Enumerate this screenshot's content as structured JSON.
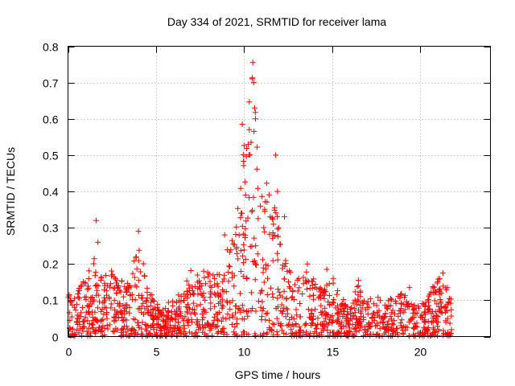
{
  "chart_data": {
    "type": "scatter",
    "title": "Day 334 of 2021, SRMTID for receiver lama",
    "xlabel": "GPS time / hours",
    "ylabel": "SRMTID / TECUs",
    "xlim": [
      0,
      24
    ],
    "ylim": [
      0,
      0.8
    ],
    "x_ticks": [
      0,
      5,
      10,
      15,
      20
    ],
    "x_tick_labels": [
      "0",
      "5",
      "10",
      "15",
      "20"
    ],
    "y_ticks": [
      0,
      0.1,
      0.2,
      0.3,
      0.4,
      0.5,
      0.6,
      0.7,
      0.8
    ],
    "y_tick_labels": [
      "0",
      "0.1",
      "0.2",
      "0.3",
      "0.4",
      "0.5",
      "0.6",
      "0.7",
      "0.8"
    ],
    "grid": true,
    "marker": "plus",
    "marker_color": "#ff0000",
    "series": [
      {
        "name": "SRMTID",
        "color": "#ff0000",
        "envelope_hours": [
          0,
          0.5,
          1,
          1.5,
          2,
          2.5,
          3,
          3.5,
          4,
          4.5,
          5,
          5.5,
          6,
          6.5,
          7,
          7.5,
          8,
          8.5,
          9,
          9.5,
          10,
          10.5,
          11,
          11.5,
          12,
          12.5,
          13,
          13.5,
          14,
          14.5,
          15,
          15.5,
          16,
          16.5,
          17,
          17.5,
          18,
          18.5,
          19,
          19.5,
          20,
          20.5,
          21,
          21.5,
          21.8
        ],
        "envelope_values": [
          0.12,
          0.13,
          0.17,
          0.22,
          0.18,
          0.19,
          0.16,
          0.15,
          0.28,
          0.15,
          0.1,
          0.09,
          0.11,
          0.13,
          0.19,
          0.18,
          0.2,
          0.19,
          0.25,
          0.3,
          0.55,
          0.75,
          0.4,
          0.5,
          0.3,
          0.2,
          0.17,
          0.19,
          0.16,
          0.14,
          0.18,
          0.11,
          0.1,
          0.15,
          0.1,
          0.12,
          0.09,
          0.12,
          0.13,
          0.1,
          0.09,
          0.12,
          0.17,
          0.15,
          0.1
        ],
        "outliers": [
          {
            "x": 1.6,
            "y": 0.32
          },
          {
            "x": 1.7,
            "y": 0.26
          },
          {
            "x": 4.0,
            "y": 0.29
          },
          {
            "x": 8.9,
            "y": 0.28
          },
          {
            "x": 9.9,
            "y": 0.585
          },
          {
            "x": 10.3,
            "y": 0.57
          },
          {
            "x": 10.5,
            "y": 0.755
          },
          {
            "x": 10.55,
            "y": 0.7
          },
          {
            "x": 10.6,
            "y": 0.63
          },
          {
            "x": 10.65,
            "y": 0.6
          },
          {
            "x": 10.4,
            "y": 0.535
          },
          {
            "x": 11.8,
            "y": 0.5
          },
          {
            "x": 11.9,
            "y": 0.4
          },
          {
            "x": 12.3,
            "y": 0.33
          },
          {
            "x": 13.6,
            "y": 0.2
          },
          {
            "x": 14.7,
            "y": 0.185
          },
          {
            "x": 16.5,
            "y": 0.155
          },
          {
            "x": 19.4,
            "y": 0.135
          },
          {
            "x": 21.3,
            "y": 0.175
          }
        ]
      }
    ]
  }
}
